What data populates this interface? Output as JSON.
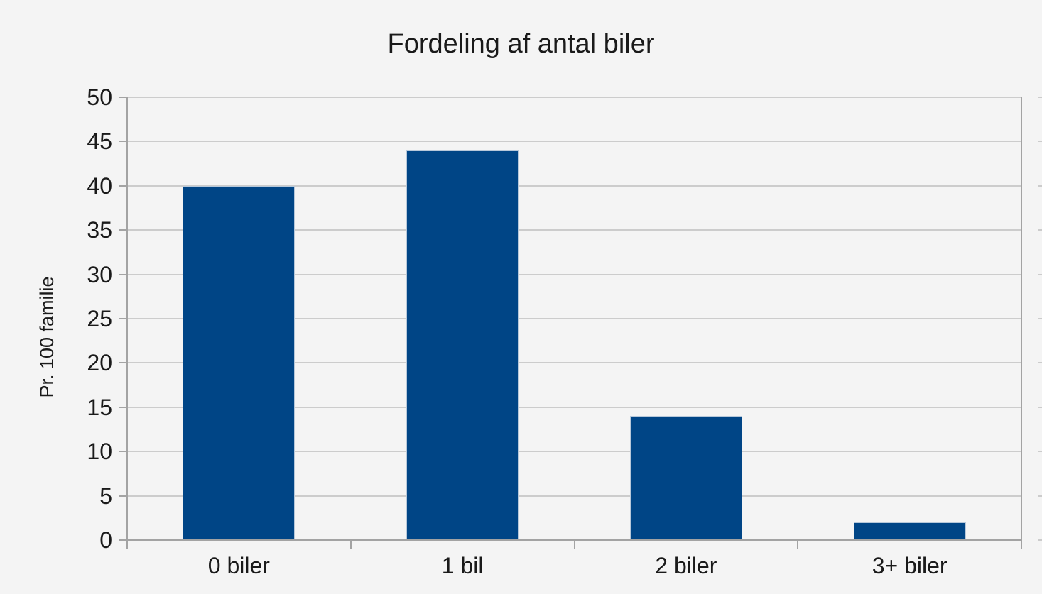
{
  "chart_data": {
    "type": "bar",
    "title": "Fordeling af antal biler",
    "xlabel": "",
    "ylabel": "Pr. 100 familie",
    "categories": [
      "0 biler",
      "1 bil",
      "2 biler",
      "3+ biler"
    ],
    "values": [
      40,
      44,
      14,
      2
    ],
    "ylim": [
      0,
      50
    ],
    "ytick_step": 5,
    "yticks": [
      0,
      5,
      10,
      15,
      20,
      25,
      30,
      35,
      40,
      45,
      50
    ],
    "grid": "horizontal",
    "legend_position": "none",
    "colors": {
      "bar": "#004586",
      "bar_border": "#b7c8da",
      "background": "#f4f4f4",
      "gridline": "#cccccc",
      "axis": "#a3a3a3",
      "text": "#1a1a1a"
    }
  }
}
